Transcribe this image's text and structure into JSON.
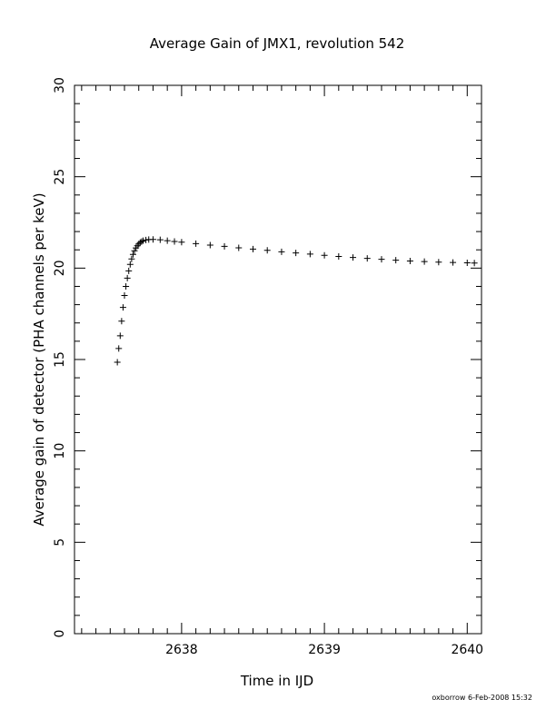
{
  "chart_data": {
    "type": "scatter",
    "title": "Average Gain of JMX1, revolution 542",
    "xlabel": "Time in IJD",
    "ylabel": "Average gain of detector (PHA channels per keV)",
    "xlim": [
      2637.25,
      2640.1
    ],
    "ylim": [
      0,
      30
    ],
    "xticks": [
      2638,
      2639,
      2640
    ],
    "yticks": [
      0,
      5,
      10,
      15,
      20,
      25,
      30
    ],
    "x_minor_step": 0.1,
    "y_minor_step": 1,
    "marker": "plus",
    "grid": false,
    "series": [
      {
        "points": [
          [
            2637.55,
            14.85
          ],
          [
            2637.56,
            15.6
          ],
          [
            2637.57,
            16.3
          ],
          [
            2637.58,
            17.1
          ],
          [
            2637.59,
            17.85
          ],
          [
            2637.6,
            18.5
          ],
          [
            2637.61,
            19.0
          ],
          [
            2637.62,
            19.45
          ],
          [
            2637.63,
            19.85
          ],
          [
            2637.64,
            20.2
          ],
          [
            2637.65,
            20.5
          ],
          [
            2637.66,
            20.75
          ],
          [
            2637.67,
            20.95
          ],
          [
            2637.68,
            21.1
          ],
          [
            2637.69,
            21.22
          ],
          [
            2637.7,
            21.32
          ],
          [
            2637.71,
            21.4
          ],
          [
            2637.72,
            21.45
          ],
          [
            2637.73,
            21.5
          ],
          [
            2637.75,
            21.54
          ],
          [
            2637.77,
            21.56
          ],
          [
            2637.8,
            21.57
          ],
          [
            2637.85,
            21.55
          ],
          [
            2637.9,
            21.5
          ],
          [
            2637.95,
            21.46
          ],
          [
            2638.0,
            21.42
          ],
          [
            2638.1,
            21.34
          ],
          [
            2638.2,
            21.26
          ],
          [
            2638.3,
            21.19
          ],
          [
            2638.4,
            21.11
          ],
          [
            2638.5,
            21.04
          ],
          [
            2638.6,
            20.97
          ],
          [
            2638.7,
            20.89
          ],
          [
            2638.8,
            20.83
          ],
          [
            2638.9,
            20.77
          ],
          [
            2639.0,
            20.7
          ],
          [
            2639.1,
            20.64
          ],
          [
            2639.2,
            20.58
          ],
          [
            2639.3,
            20.53
          ],
          [
            2639.4,
            20.48
          ],
          [
            2639.5,
            20.43
          ],
          [
            2639.6,
            20.39
          ],
          [
            2639.7,
            20.36
          ],
          [
            2639.8,
            20.33
          ],
          [
            2639.9,
            20.31
          ],
          [
            2640.0,
            20.29
          ],
          [
            2640.05,
            20.28
          ]
        ]
      }
    ]
  },
  "footer": {
    "stamp": "oxborrow  6-Feb-2008 15:32"
  }
}
